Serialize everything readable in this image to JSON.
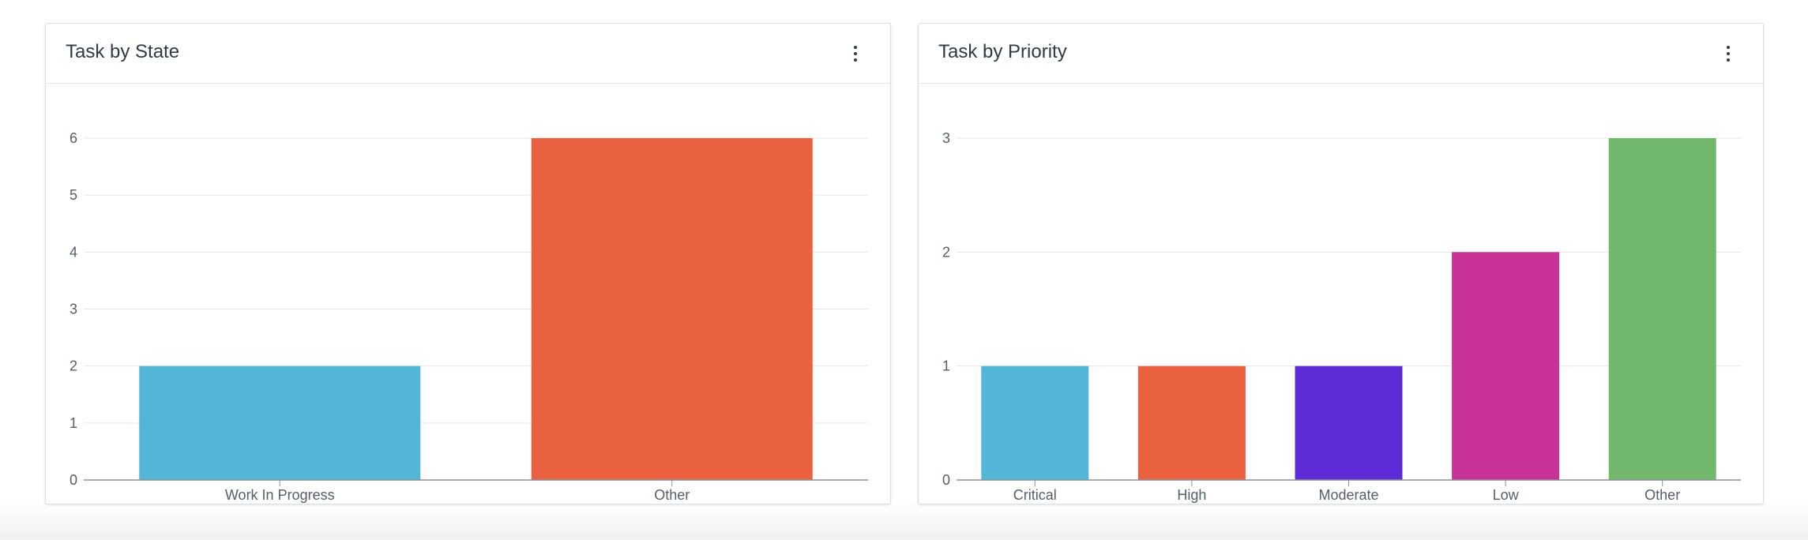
{
  "cards": [
    {
      "title": "Task by State",
      "menu_icon": "more-vertical-icon"
    },
    {
      "title": "Task by Priority",
      "menu_icon": "more-vertical-icon"
    }
  ],
  "chart_data": [
    {
      "type": "bar",
      "title": "Task by State",
      "categories": [
        "Work In Progress",
        "Other"
      ],
      "values": [
        2,
        6
      ],
      "colors": [
        "#54b6d6",
        "#ea6140"
      ],
      "ylim": [
        0,
        6
      ],
      "yticks": [
        0,
        1,
        2,
        3,
        4,
        5,
        6
      ],
      "grid": true,
      "xlabel": "",
      "ylabel": ""
    },
    {
      "type": "bar",
      "title": "Task by Priority",
      "categories": [
        "Critical",
        "High",
        "Moderate",
        "Low",
        "Other"
      ],
      "values": [
        1,
        1,
        1,
        2,
        3
      ],
      "colors": [
        "#54b6d6",
        "#ea6140",
        "#5e2cd6",
        "#c93296",
        "#72b86c"
      ],
      "ylim": [
        0,
        3
      ],
      "yticks": [
        0,
        1,
        2,
        3
      ],
      "grid": true,
      "xlabel": "",
      "ylabel": ""
    }
  ]
}
